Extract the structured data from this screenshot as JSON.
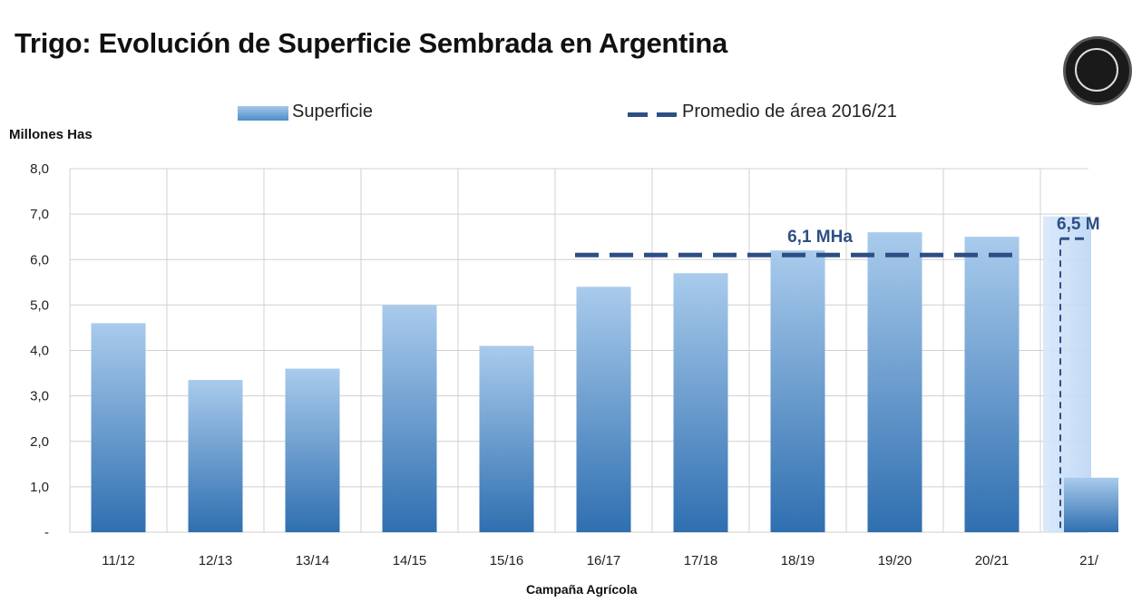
{
  "title": "Trigo: Evolución de Superficie Sembrada en Argentina",
  "colors": {
    "bar_top": "#a9cbec",
    "bar_bottom": "#2f6fb0",
    "average_line": "#2e4f86",
    "annotation": "#2e4f86",
    "grid": "#d0d0d0"
  },
  "chart_data": {
    "type": "bar",
    "title": "Trigo: Evolución de Superficie Sembrada en Argentina",
    "ylabel": "Millones Has",
    "xlabel": "Campaña Agrícola",
    "ylim": [
      0,
      8
    ],
    "y_ticks": [
      "-",
      "1,0",
      "2,0",
      "3,0",
      "4,0",
      "5,0",
      "6,0",
      "7,0",
      "8,0"
    ],
    "grid": true,
    "legend_position": "top",
    "categories": [
      "11/12",
      "12/13",
      "13/14",
      "14/15",
      "15/16",
      "16/17",
      "17/18",
      "18/19",
      "19/20",
      "20/21",
      "21/"
    ],
    "series": [
      {
        "name": "Superficie",
        "values": [
          4.6,
          3.35,
          3.6,
          5.0,
          4.1,
          5.4,
          5.7,
          6.2,
          6.6,
          6.5,
          1.2
        ]
      }
    ],
    "reference_lines": [
      {
        "name": "Promedio de área 2016/21",
        "value": 6.1,
        "from_category": "16/17",
        "to_category": "20/21",
        "label": "6,1 MHa"
      }
    ],
    "annotations": [
      {
        "text": "6,5 M",
        "category": "21/",
        "value": 6.5
      }
    ]
  }
}
